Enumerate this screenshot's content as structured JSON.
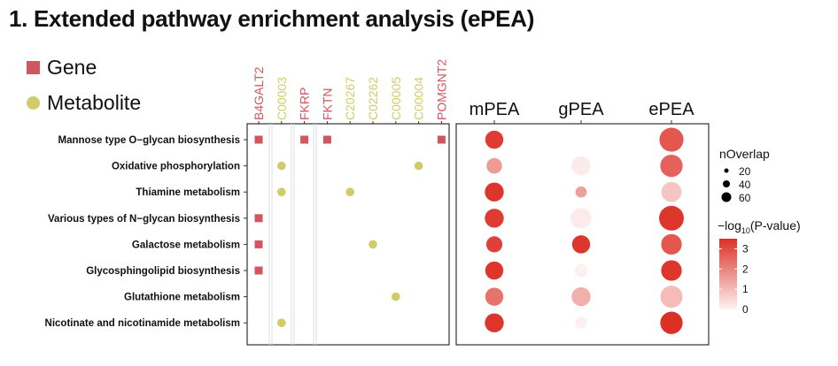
{
  "title": "1. Extended pathway enrichment analysis (ePEA)",
  "legend": {
    "gene_label": "Gene",
    "metabolite_label": "Metabolite"
  },
  "colors": {
    "gene": "#d1565f",
    "metabolite": "#d2cb6a",
    "scale_low": "#fdf3f3",
    "scale_high": "#dc3026",
    "separator": "#dcdcdc"
  },
  "chart_data": [
    {
      "type": "scatter",
      "title": "",
      "pathways": [
        "Mannose type O−glycan biosynthesis",
        "Oxidative phosphorylation",
        "Thiamine metabolism",
        "Various types of N−glycan biosynthesis",
        "Galactose metabolism",
        "Glycosphingolipid biosynthesis",
        "Glutathione metabolism",
        "Nicotinate and nicotinamide metabolism"
      ],
      "features": [
        {
          "name": "B4GALT2",
          "kind": "gene"
        },
        {
          "name": "C00003",
          "kind": "metabolite"
        },
        {
          "name": "FKRP",
          "kind": "gene"
        },
        {
          "name": "FKTN",
          "kind": "gene"
        },
        {
          "name": "C20267",
          "kind": "metabolite"
        },
        {
          "name": "C02262",
          "kind": "metabolite"
        },
        {
          "name": "C00005",
          "kind": "metabolite"
        },
        {
          "name": "C00004",
          "kind": "metabolite"
        },
        {
          "name": "POMGNT2",
          "kind": "gene"
        }
      ],
      "memberships": [
        {
          "pathway": 0,
          "feature": 0
        },
        {
          "pathway": 0,
          "feature": 2
        },
        {
          "pathway": 0,
          "feature": 3
        },
        {
          "pathway": 0,
          "feature": 8
        },
        {
          "pathway": 1,
          "feature": 1
        },
        {
          "pathway": 1,
          "feature": 7
        },
        {
          "pathway": 2,
          "feature": 1
        },
        {
          "pathway": 2,
          "feature": 4
        },
        {
          "pathway": 3,
          "feature": 0
        },
        {
          "pathway": 4,
          "feature": 0
        },
        {
          "pathway": 4,
          "feature": 5
        },
        {
          "pathway": 5,
          "feature": 0
        },
        {
          "pathway": 6,
          "feature": 6
        },
        {
          "pathway": 7,
          "feature": 1
        }
      ]
    },
    {
      "type": "scatter",
      "title": "",
      "methods": [
        "mPEA",
        "gPEA",
        "ePEA"
      ],
      "size_legend_title": "nOverlap",
      "size_legend_values": [
        20,
        40,
        60
      ],
      "color_legend_title_main": "−log",
      "color_legend_title_sub": "10",
      "color_legend_title_rest": "(P-value)",
      "color_legend_ticks": [
        3,
        2,
        1,
        0
      ],
      "color_range": [
        0,
        3.5
      ],
      "points": [
        {
          "pathway": 0,
          "method": 0,
          "noverlap": 28,
          "neglog10p": 3.3
        },
        {
          "pathway": 0,
          "method": 2,
          "noverlap": 60,
          "neglog10p": 2.8
        },
        {
          "pathway": 1,
          "method": 0,
          "noverlap": 18,
          "neglog10p": 1.6
        },
        {
          "pathway": 1,
          "method": 1,
          "noverlap": 32,
          "neglog10p": 0.15
        },
        {
          "pathway": 1,
          "method": 2,
          "noverlap": 50,
          "neglog10p": 2.6
        },
        {
          "pathway": 2,
          "method": 0,
          "noverlap": 32,
          "neglog10p": 3.4
        },
        {
          "pathway": 2,
          "method": 1,
          "noverlap": 6,
          "neglog10p": 1.5
        },
        {
          "pathway": 2,
          "method": 2,
          "noverlap": 38,
          "neglog10p": 0.8
        },
        {
          "pathway": 3,
          "method": 0,
          "noverlap": 32,
          "neglog10p": 3.3
        },
        {
          "pathway": 3,
          "method": 1,
          "noverlap": 40,
          "neglog10p": 0.15
        },
        {
          "pathway": 3,
          "method": 2,
          "noverlap": 65,
          "neglog10p": 3.4
        },
        {
          "pathway": 4,
          "method": 0,
          "noverlap": 20,
          "neglog10p": 3.2
        },
        {
          "pathway": 4,
          "method": 1,
          "noverlap": 28,
          "neglog10p": 3.4
        },
        {
          "pathway": 4,
          "method": 2,
          "noverlap": 40,
          "neglog10p": 2.8
        },
        {
          "pathway": 5,
          "method": 0,
          "noverlap": 28,
          "neglog10p": 3.4
        },
        {
          "pathway": 5,
          "method": 1,
          "noverlap": 10,
          "neglog10p": 0.05
        },
        {
          "pathway": 5,
          "method": 2,
          "noverlap": 40,
          "neglog10p": 3.4
        },
        {
          "pathway": 6,
          "method": 0,
          "noverlap": 28,
          "neglog10p": 2.3
        },
        {
          "pathway": 6,
          "method": 1,
          "noverlap": 32,
          "neglog10p": 1.2
        },
        {
          "pathway": 6,
          "method": 2,
          "noverlap": 48,
          "neglog10p": 1.0
        },
        {
          "pathway": 7,
          "method": 0,
          "noverlap": 32,
          "neglog10p": 3.4
        },
        {
          "pathway": 7,
          "method": 1,
          "noverlap": 8,
          "neglog10p": 0.05
        },
        {
          "pathway": 7,
          "method": 2,
          "noverlap": 50,
          "neglog10p": 3.5
        }
      ]
    }
  ]
}
